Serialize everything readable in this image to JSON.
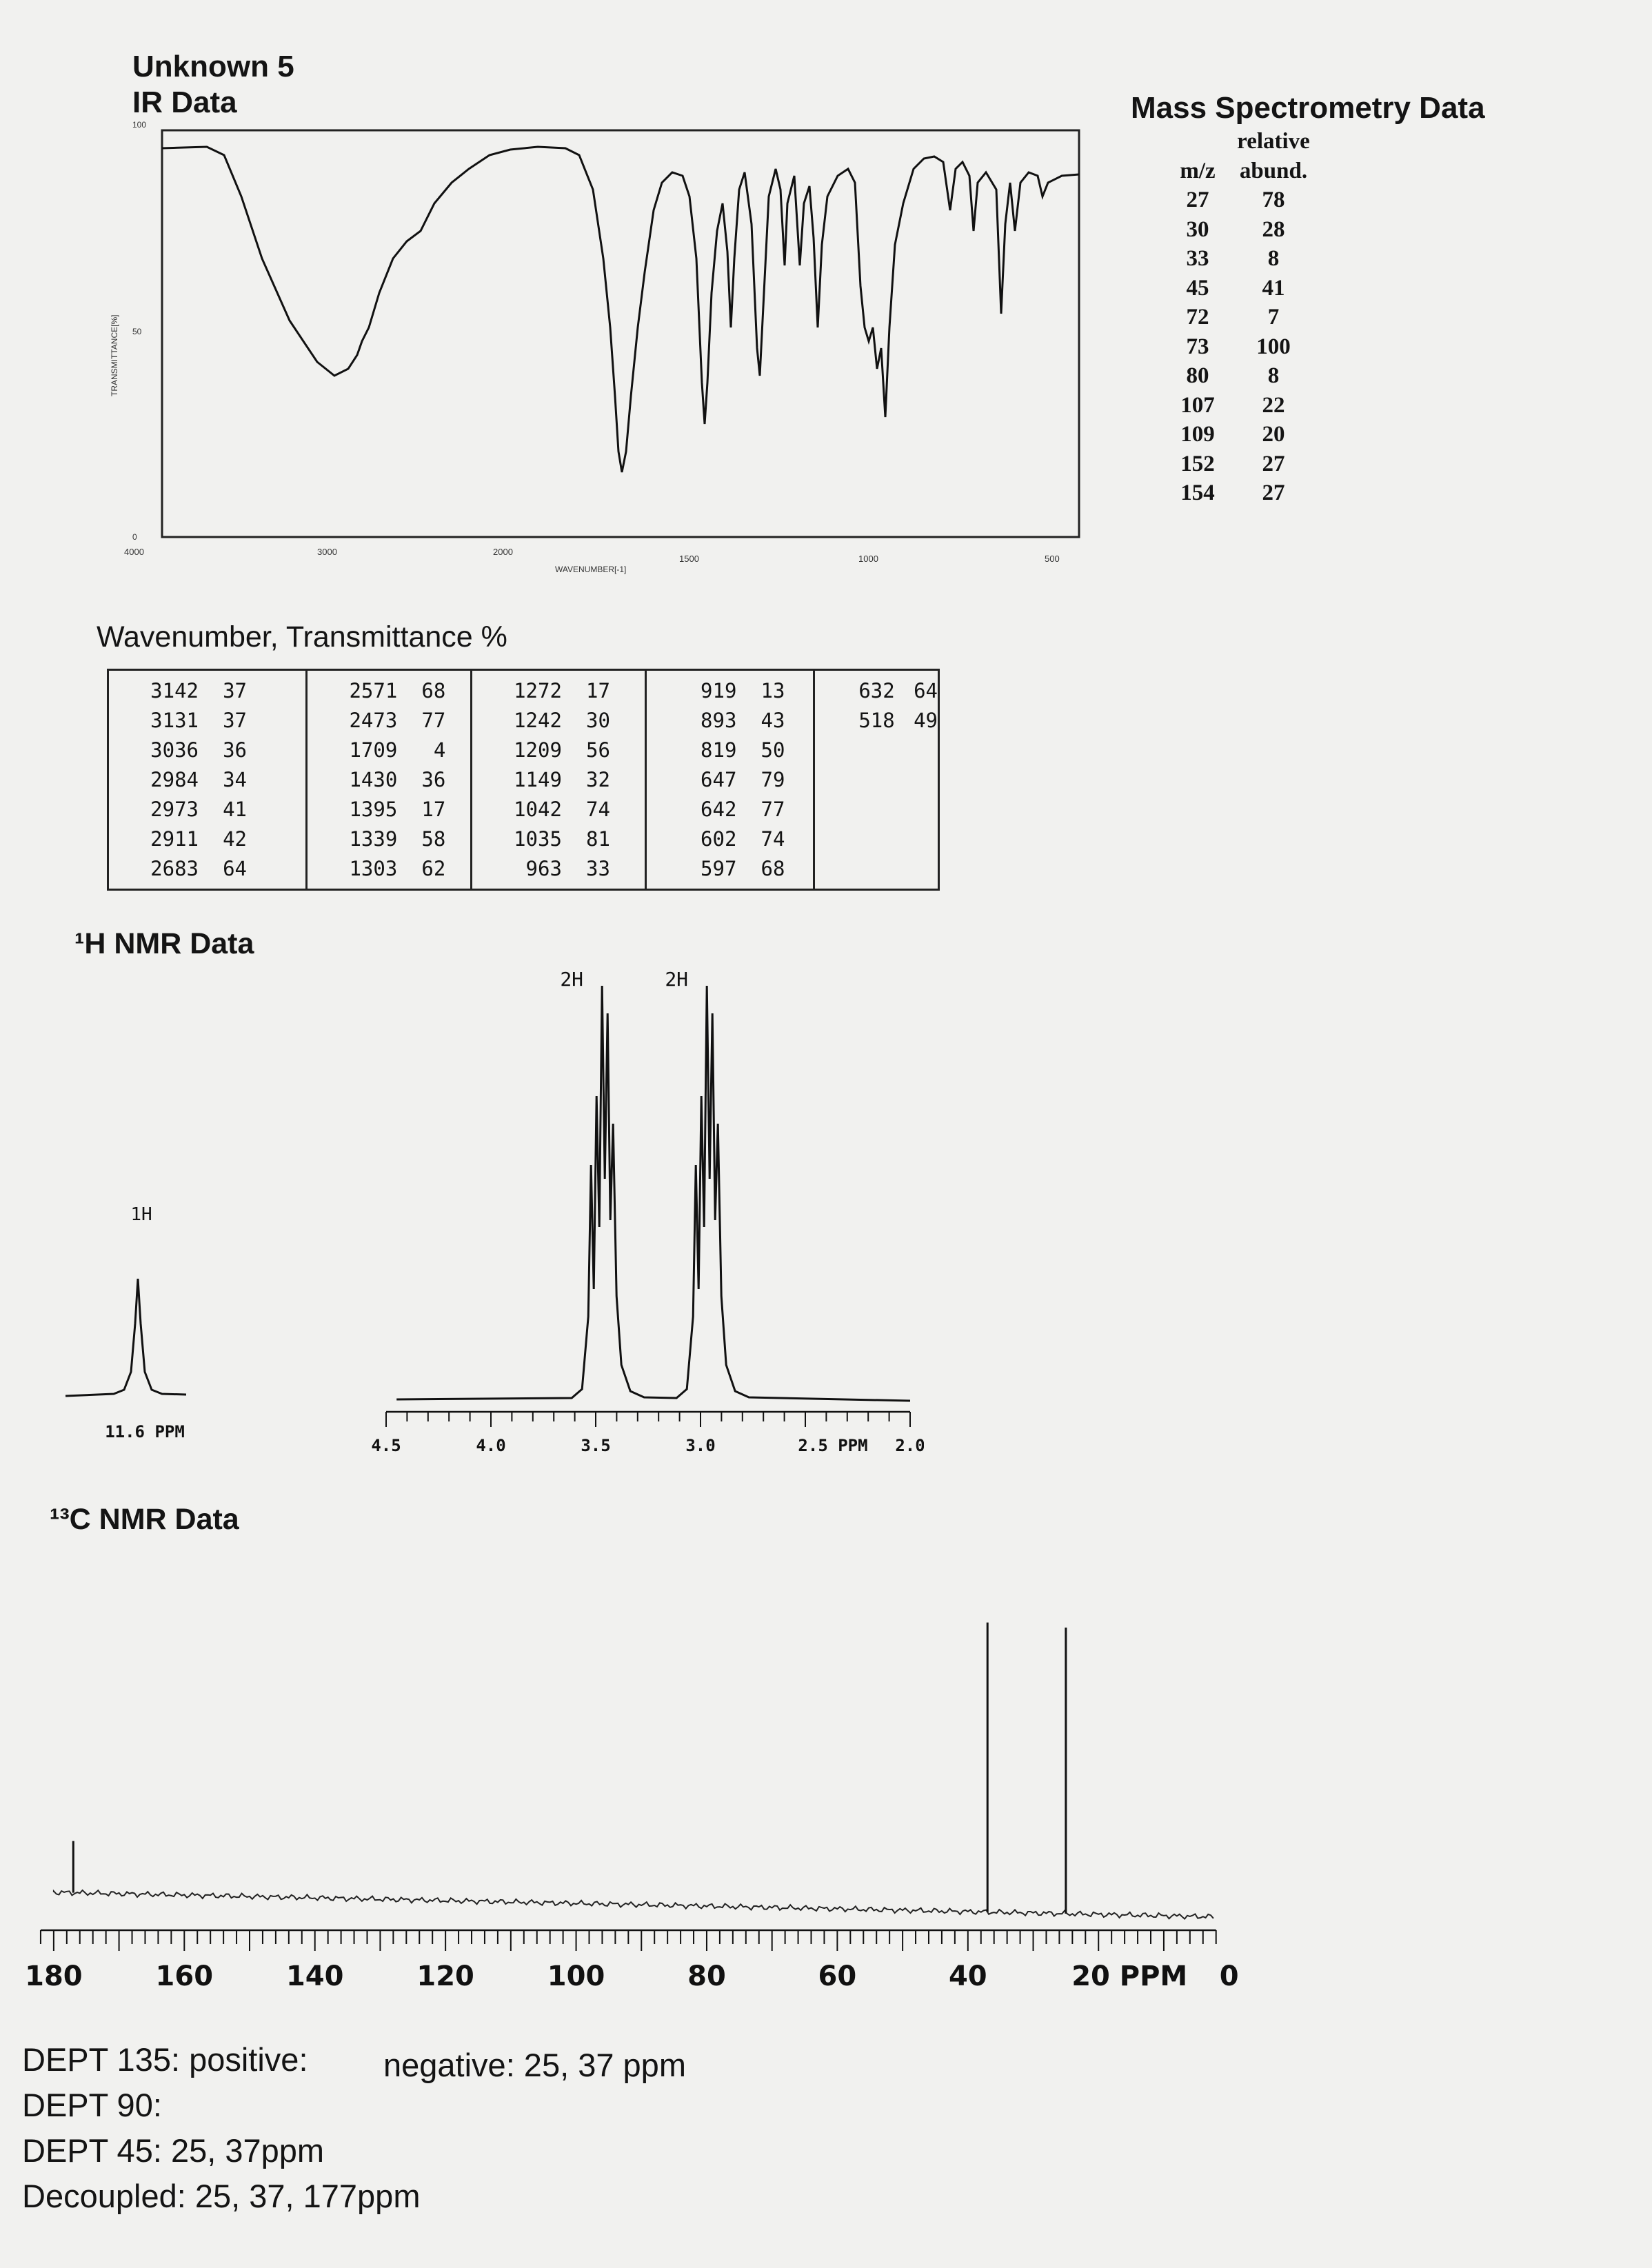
{
  "header": {
    "unknown": "Unknown 5",
    "ir_title": "IR Data"
  },
  "ir_spectrum": {
    "y_ticks": [
      "100",
      "50",
      "0"
    ],
    "x_ticks": [
      "4000",
      "3000",
      "2000",
      "1500",
      "1000",
      "500"
    ],
    "ylabel": "TRANSMITTANCE[%]",
    "xlabel": "WAVENUMBER[-1]"
  },
  "mass_spec": {
    "title": "Mass Spectrometry Data",
    "header_line1": "relative",
    "col_mz": "m/z",
    "col_abund": "abund.",
    "rows": [
      {
        "mz": "27",
        "abund": "78"
      },
      {
        "mz": "30",
        "abund": "28"
      },
      {
        "mz": "33",
        "abund": "8"
      },
      {
        "mz": "45",
        "abund": "41"
      },
      {
        "mz": "72",
        "abund": "7"
      },
      {
        "mz": "73",
        "abund": "100"
      },
      {
        "mz": "80",
        "abund": "8"
      },
      {
        "mz": "107",
        "abund": "22"
      },
      {
        "mz": "109",
        "abund": "20"
      },
      {
        "mz": "152",
        "abund": "27"
      },
      {
        "mz": "154",
        "abund": "27"
      }
    ]
  },
  "ir_table": {
    "title": "Wavenumber, Transmittance %",
    "columns": [
      [
        [
          "3142",
          "37"
        ],
        [
          "3131",
          "37"
        ],
        [
          "3036",
          "36"
        ],
        [
          "2984",
          "34"
        ],
        [
          "2973",
          "41"
        ],
        [
          "2911",
          "42"
        ],
        [
          "2683",
          "64"
        ]
      ],
      [
        [
          "2571",
          "68"
        ],
        [
          "2473",
          "77"
        ],
        [
          "1709",
          "4"
        ],
        [
          "1430",
          "36"
        ],
        [
          "1395",
          "17"
        ],
        [
          "1339",
          "58"
        ],
        [
          "1303",
          "62"
        ]
      ],
      [
        [
          "1272",
          "17"
        ],
        [
          "1242",
          "30"
        ],
        [
          "1209",
          "56"
        ],
        [
          "1149",
          "32"
        ],
        [
          "1042",
          "74"
        ],
        [
          "1035",
          "81"
        ],
        [
          "963",
          "33"
        ]
      ],
      [
        [
          "919",
          "13"
        ],
        [
          "893",
          "43"
        ],
        [
          "819",
          "50"
        ],
        [
          "647",
          "79"
        ],
        [
          "642",
          "77"
        ],
        [
          "602",
          "74"
        ],
        [
          "597",
          "68"
        ]
      ],
      [
        [
          "632",
          "64"
        ],
        [
          "518",
          "49"
        ]
      ]
    ]
  },
  "h_nmr": {
    "title": "¹H NMR Data",
    "peaks": [
      {
        "ppm": 11.6,
        "label": "1H"
      },
      {
        "ppm": 3.45,
        "label": "2H"
      },
      {
        "ppm": 2.95,
        "label": "2H"
      }
    ],
    "inset_label": "11.6 PPM",
    "x_ticks": [
      "4.5",
      "4.0",
      "3.5",
      "3.0",
      "2.5 PPM",
      "2.0"
    ]
  },
  "c_nmr": {
    "title": "¹³C NMR Data",
    "peaks_ppm": [
      177,
      37,
      25
    ],
    "x_ticks": [
      "180",
      "160",
      "140",
      "120",
      "100",
      "80",
      "60",
      "40",
      "20 PPM",
      "0"
    ]
  },
  "dept": {
    "dept135_pos": "DEPT 135: positive:",
    "dept135_neg": "negative: 25, 37 ppm",
    "dept90": "DEPT 90:",
    "dept45": "DEPT 45: 25, 37ppm",
    "decoupled": "Decoupled: 25, 37, 177ppm"
  }
}
